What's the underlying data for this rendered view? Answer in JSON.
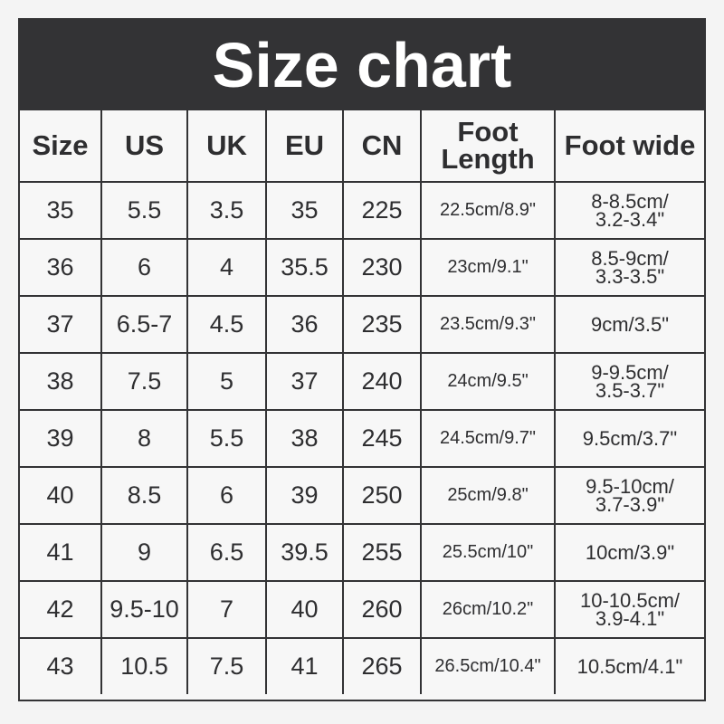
{
  "title": "Size chart",
  "headers": [
    "Size",
    "US",
    "UK",
    "EU",
    "CN",
    "Foot Length",
    "Foot wide"
  ],
  "rows": [
    [
      "35",
      "5.5",
      "3.5",
      "35",
      "225",
      "22.5cm/8.9\"",
      "8-8.5cm/\n3.2-3.4\""
    ],
    [
      "36",
      "6",
      "4",
      "35.5",
      "230",
      "23cm/9.1\"",
      "8.5-9cm/\n3.3-3.5\""
    ],
    [
      "37",
      "6.5-7",
      "4.5",
      "36",
      "235",
      "23.5cm/9.3\"",
      "9cm/3.5\""
    ],
    [
      "38",
      "7.5",
      "5",
      "37",
      "240",
      "24cm/9.5\"",
      "9-9.5cm/\n3.5-3.7\""
    ],
    [
      "39",
      "8",
      "5.5",
      "38",
      "245",
      "24.5cm/9.7\"",
      "9.5cm/3.7\""
    ],
    [
      "40",
      "8.5",
      "6",
      "39",
      "250",
      "25cm/9.8\"",
      "9.5-10cm/\n3.7-3.9\""
    ],
    [
      "41",
      "9",
      "6.5",
      "39.5",
      "255",
      "25.5cm/10\"",
      "10cm/3.9\""
    ],
    [
      "42",
      "9.5-10",
      "7",
      "40",
      "260",
      "26cm/10.2\"",
      "10-10.5cm/\n3.9-4.1\""
    ],
    [
      "43",
      "10.5",
      "7.5",
      "41",
      "265",
      "26.5cm/10.4\"",
      "10.5cm/4.1\""
    ]
  ]
}
